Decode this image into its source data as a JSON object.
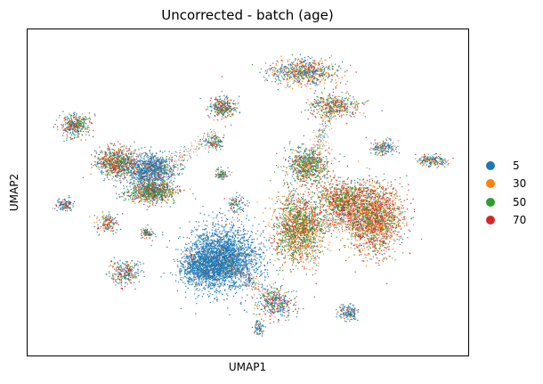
{
  "chart_data": {
    "type": "scatter",
    "title": "Uncorrected - batch (age)",
    "xlabel": "UMAP1",
    "ylabel": "UMAP2",
    "grid": false,
    "ticks": false,
    "legend_position": "right",
    "series": [
      {
        "name": "5",
        "color": "#1f77b4"
      },
      {
        "name": "30",
        "color": "#ff7f0e"
      },
      {
        "name": "50",
        "color": "#2ca02c"
      },
      {
        "name": "70",
        "color": "#d62728"
      }
    ]
  }
}
